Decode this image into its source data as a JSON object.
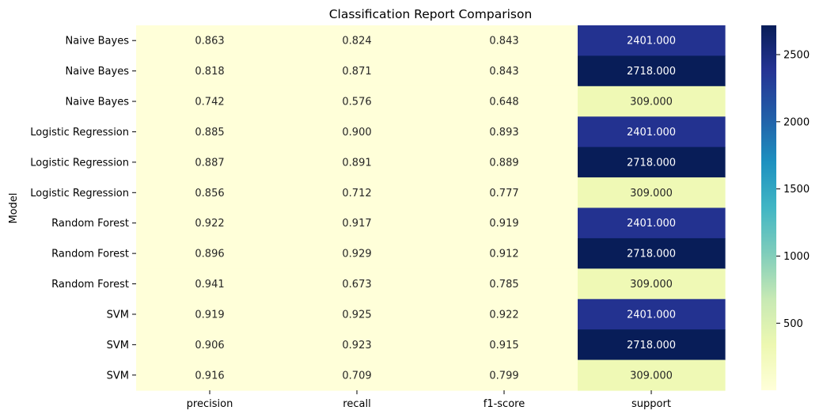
{
  "chart_data": {
    "type": "heatmap",
    "title": "Classification Report Comparison",
    "xlabel": "",
    "ylabel": "Model",
    "columns": [
      "precision",
      "recall",
      "f1-score",
      "support"
    ],
    "rows": [
      "Naive Bayes",
      "Naive Bayes",
      "Naive Bayes",
      "Logistic Regression",
      "Logistic Regression",
      "Logistic Regression",
      "Random Forest",
      "Random Forest",
      "Random Forest",
      "SVM",
      "SVM",
      "SVM"
    ],
    "values": [
      [
        0.863,
        0.824,
        0.843,
        2401.0
      ],
      [
        0.818,
        0.871,
        0.843,
        2718.0
      ],
      [
        0.742,
        0.576,
        0.648,
        309.0
      ],
      [
        0.885,
        0.9,
        0.893,
        2401.0
      ],
      [
        0.887,
        0.891,
        0.889,
        2718.0
      ],
      [
        0.856,
        0.712,
        0.777,
        309.0
      ],
      [
        0.922,
        0.917,
        0.919,
        2401.0
      ],
      [
        0.896,
        0.929,
        0.912,
        2718.0
      ],
      [
        0.941,
        0.673,
        0.785,
        309.0
      ],
      [
        0.919,
        0.925,
        0.922,
        2401.0
      ],
      [
        0.906,
        0.923,
        0.915,
        2718.0
      ],
      [
        0.916,
        0.709,
        0.799,
        309.0
      ]
    ],
    "labels": [
      [
        "0.863",
        "0.824",
        "0.843",
        "2401.000"
      ],
      [
        "0.818",
        "0.871",
        "0.843",
        "2718.000"
      ],
      [
        "0.742",
        "0.576",
        "0.648",
        "309.000"
      ],
      [
        "0.885",
        "0.900",
        "0.893",
        "2401.000"
      ],
      [
        "0.887",
        "0.891",
        "0.889",
        "2718.000"
      ],
      [
        "0.856",
        "0.712",
        "0.777",
        "309.000"
      ],
      [
        "0.922",
        "0.917",
        "0.919",
        "2401.000"
      ],
      [
        "0.896",
        "0.929",
        "0.912",
        "2718.000"
      ],
      [
        "0.941",
        "0.673",
        "0.785",
        "309.000"
      ],
      [
        "0.919",
        "0.925",
        "0.922",
        "2401.000"
      ],
      [
        "0.906",
        "0.923",
        "0.915",
        "2718.000"
      ],
      [
        "0.916",
        "0.709",
        "0.799",
        "309.000"
      ]
    ],
    "colormap": "YlGnBu",
    "colorbar": {
      "range": [
        0.576,
        2718.0
      ],
      "ticks": [
        500,
        1000,
        1500,
        2000,
        2500
      ]
    },
    "grid": false
  }
}
